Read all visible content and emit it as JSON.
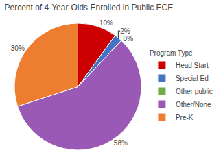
{
  "chart_data": {
    "type": "pie",
    "title": "Percent of 4-Year-Olds Enrolled in Public ECE",
    "categories": [
      "Head Start",
      "Special Ed",
      "Other public",
      "Other/None",
      "Pre-K"
    ],
    "values": [
      10,
      2,
      0,
      58,
      30
    ],
    "value_labels": [
      "10%",
      "2%",
      "0%",
      "58%",
      "30%"
    ],
    "colors": [
      "#cc0000",
      "#4472c4",
      "#70ad47",
      "#9b59b6",
      "#ed7d31"
    ],
    "legend": "right",
    "legend_title": "Program Type",
    "data_labels": true
  }
}
